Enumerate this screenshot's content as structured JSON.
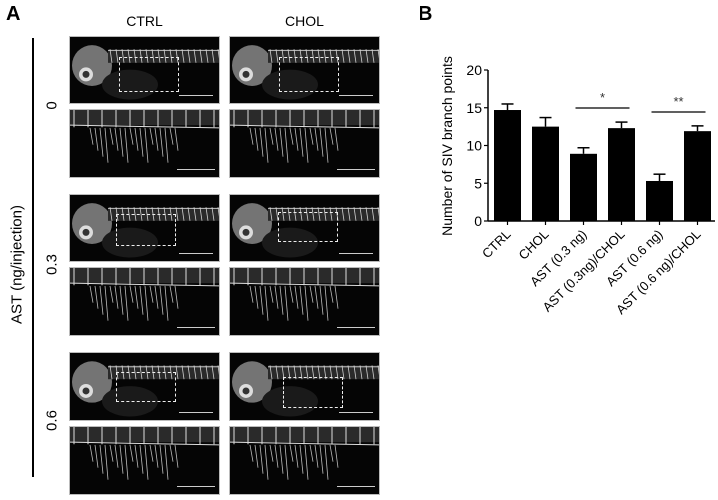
{
  "panel_a": {
    "letter": "A",
    "columns": [
      "CTRL",
      "CHOL"
    ],
    "row_axis_label": "AST (ng/injection)",
    "doses": [
      "0",
      "0.3",
      "0.6"
    ],
    "image_description": "Fluorescent zebrafish embryo vasculature micrographs; upper image per dose shows whole embryo with dashed box around SIV region, lower image shows magnified SIV basket; white scale bars bottom-right"
  },
  "panel_b": {
    "letter": "B"
  },
  "chart_data": {
    "type": "bar",
    "title": "",
    "xlabel": "",
    "ylabel": "Number of SIV branch points",
    "ylim": [
      0,
      20
    ],
    "yticks": [
      0,
      5,
      10,
      15,
      20
    ],
    "categories": [
      "CTRL",
      "CHOL",
      "AST (0.3 ng)",
      "AST (0.3ng)/CHOL",
      "AST (0.6 ng)",
      "AST (0.6 ng)/CHOL"
    ],
    "values": [
      14.7,
      12.5,
      8.9,
      12.3,
      5.3,
      11.9
    ],
    "error": [
      0.8,
      1.2,
      0.8,
      0.8,
      0.9,
      0.7
    ],
    "bar_color": "#000000",
    "grid": false,
    "legend": null,
    "annotations": [
      {
        "text": "*",
        "from": "AST (0.3 ng)",
        "to": "AST (0.3ng)/CHOL"
      },
      {
        "text": "**",
        "from": "AST (0.6 ng)",
        "to": "AST (0.6 ng)/CHOL"
      }
    ]
  }
}
